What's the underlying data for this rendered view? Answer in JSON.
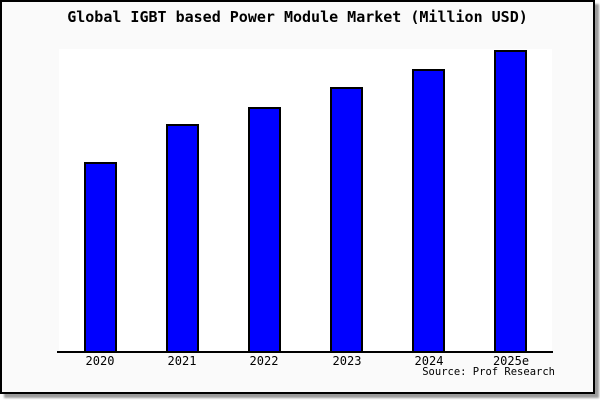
{
  "frame": {
    "background": "#fafafa",
    "border_color": "#000000",
    "plot_background": "#ffffff",
    "shadow_color": "#9a9a9a"
  },
  "title": "Global IGBT based Power Module Market (Million USD)",
  "source_credit": "Source: Prof Research",
  "chart_data": {
    "type": "bar",
    "title": "Global IGBT based Power Module Market (Million USD)",
    "categories": [
      "2020",
      "2021",
      "2022",
      "2023",
      "2024",
      "2025e"
    ],
    "values": [
      62.6,
      75.2,
      80.8,
      87.4,
      93.4,
      99.7
    ],
    "values_note": "relative bar heights as % of plot height; chart shows no y-axis, gridlines or value labels",
    "bar_color": "#0000ff",
    "bar_edge_color": "#000000",
    "xlabel": "",
    "ylabel": "",
    "ylim": [
      0,
      100
    ],
    "grid": false,
    "legend": false,
    "annotation": "Source: Prof Research"
  }
}
